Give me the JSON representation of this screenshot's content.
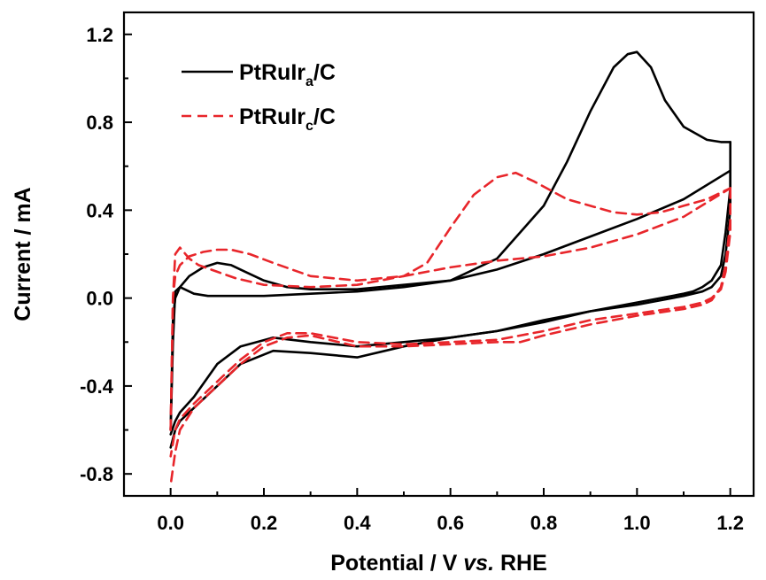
{
  "chart_data": {
    "type": "line",
    "xlabel_prefix": "Potential / V ",
    "xlabel_italic": "vs.",
    "xlabel_suffix": " RHE",
    "ylabel": "Current / mA",
    "xlim": [
      -0.1,
      1.25
    ],
    "ylim": [
      -0.9,
      1.3
    ],
    "xticks": [
      0.0,
      0.2,
      0.4,
      0.6,
      0.8,
      1.0,
      1.2
    ],
    "xtick_labels": [
      "0.0",
      "0.2",
      "0.4",
      "0.6",
      "0.8",
      "1.0",
      "1.2"
    ],
    "yticks": [
      -0.8,
      -0.4,
      0.0,
      0.4,
      0.8,
      1.2
    ],
    "ytick_labels": [
      "-0.8",
      "-0.4",
      "0.0",
      "0.4",
      "0.8",
      "1.2"
    ],
    "grid": false,
    "legend_position": "top-left",
    "series": [
      {
        "legend_main": "PtRuIr",
        "legend_sub": "a",
        "legend_tail": "/C",
        "color": "#000000",
        "dash": "solid",
        "segments": [
          {
            "x": [
              0.0,
              0.005,
              0.01,
              0.02,
              0.03,
              0.05,
              0.08,
              0.12,
              0.2,
              0.3,
              0.4,
              0.5,
              0.6,
              0.7,
              0.8,
              0.85,
              0.9,
              0.95,
              0.98,
              1.0,
              1.03,
              1.06,
              1.1,
              1.15,
              1.18,
              1.2
            ],
            "y": [
              -0.6,
              -0.2,
              0.03,
              0.05,
              0.04,
              0.02,
              0.01,
              0.01,
              0.01,
              0.02,
              0.03,
              0.05,
              0.08,
              0.18,
              0.42,
              0.62,
              0.85,
              1.05,
              1.11,
              1.12,
              1.05,
              0.9,
              0.78,
              0.72,
              0.71,
              0.71
            ]
          },
          {
            "x": [
              1.2,
              1.2,
              1.19,
              1.18,
              1.16,
              1.14,
              1.12,
              1.1,
              1.0,
              0.9,
              0.8,
              0.7,
              0.6,
              0.5,
              0.4,
              0.3,
              0.22,
              0.15,
              0.1,
              0.05,
              0.02,
              0.01,
              0.0
            ],
            "y": [
              0.71,
              0.5,
              0.3,
              0.15,
              0.08,
              0.05,
              0.03,
              0.02,
              -0.02,
              -0.06,
              -0.11,
              -0.15,
              -0.18,
              -0.22,
              -0.27,
              -0.25,
              -0.24,
              -0.3,
              -0.4,
              -0.5,
              -0.56,
              -0.6,
              -0.68
            ]
          },
          {
            "x": [
              0.0,
              0.005,
              0.01,
              0.02,
              0.04,
              0.07,
              0.1,
              0.13,
              0.16,
              0.2,
              0.25,
              0.3,
              0.4,
              0.5,
              0.6,
              0.7,
              0.8,
              0.9,
              1.0,
              1.1,
              1.2
            ],
            "y": [
              -0.6,
              -0.1,
              0.0,
              0.05,
              0.1,
              0.14,
              0.16,
              0.15,
              0.12,
              0.08,
              0.05,
              0.04,
              0.04,
              0.06,
              0.08,
              0.13,
              0.2,
              0.28,
              0.36,
              0.45,
              0.58
            ]
          },
          {
            "x": [
              1.2,
              1.2,
              1.19,
              1.18,
              1.16,
              1.14,
              1.12,
              1.1,
              1.0,
              0.9,
              0.8,
              0.7,
              0.6,
              0.5,
              0.4,
              0.3,
              0.22,
              0.15,
              0.1,
              0.05,
              0.02,
              0.01,
              0.0
            ],
            "y": [
              0.58,
              0.4,
              0.2,
              0.1,
              0.05,
              0.03,
              0.02,
              0.01,
              -0.03,
              -0.06,
              -0.1,
              -0.15,
              -0.18,
              -0.2,
              -0.22,
              -0.2,
              -0.18,
              -0.22,
              -0.3,
              -0.45,
              -0.52,
              -0.56,
              -0.62
            ]
          }
        ]
      },
      {
        "legend_main": "PtRuIr",
        "legend_sub": "c",
        "legend_tail": "/C",
        "color": "#e8262b",
        "dash": "dashed",
        "segments": [
          {
            "x": [
              0.0,
              0.005,
              0.01,
              0.02,
              0.04,
              0.06,
              0.1,
              0.14,
              0.2,
              0.3,
              0.4,
              0.5,
              0.55,
              0.6,
              0.65,
              0.7,
              0.74,
              0.78,
              0.85,
              0.95,
              1.0,
              1.05,
              1.1,
              1.15,
              1.2
            ],
            "y": [
              -0.6,
              0.0,
              0.2,
              0.23,
              0.18,
              0.15,
              0.12,
              0.09,
              0.06,
              0.05,
              0.06,
              0.1,
              0.16,
              0.32,
              0.47,
              0.55,
              0.57,
              0.53,
              0.45,
              0.39,
              0.38,
              0.39,
              0.42,
              0.45,
              0.5
            ]
          },
          {
            "x": [
              1.2,
              1.2,
              1.19,
              1.18,
              1.16,
              1.14,
              1.12,
              1.1,
              1.0,
              0.9,
              0.8,
              0.75,
              0.7,
              0.6,
              0.5,
              0.4,
              0.3,
              0.25,
              0.2,
              0.15,
              0.1,
              0.05,
              0.02,
              0.01,
              0.0
            ],
            "y": [
              0.5,
              0.35,
              0.15,
              0.05,
              -0.01,
              -0.03,
              -0.04,
              -0.05,
              -0.08,
              -0.12,
              -0.17,
              -0.2,
              -0.2,
              -0.21,
              -0.22,
              -0.22,
              -0.17,
              -0.18,
              -0.22,
              -0.3,
              -0.4,
              -0.5,
              -0.6,
              -0.7,
              -0.85
            ]
          },
          {
            "x": [
              0.0,
              0.005,
              0.01,
              0.02,
              0.04,
              0.07,
              0.1,
              0.13,
              0.17,
              0.22,
              0.3,
              0.4,
              0.5,
              0.6,
              0.7,
              0.8,
              0.9,
              1.0,
              1.1,
              1.2
            ],
            "y": [
              -0.6,
              0.0,
              0.1,
              0.15,
              0.19,
              0.21,
              0.22,
              0.22,
              0.2,
              0.16,
              0.1,
              0.08,
              0.1,
              0.14,
              0.17,
              0.19,
              0.23,
              0.29,
              0.37,
              0.5
            ]
          },
          {
            "x": [
              1.2,
              1.2,
              1.19,
              1.18,
              1.16,
              1.14,
              1.12,
              1.1,
              1.0,
              0.9,
              0.8,
              0.7,
              0.6,
              0.5,
              0.4,
              0.3,
              0.25,
              0.2,
              0.15,
              0.1,
              0.05,
              0.02,
              0.01,
              0.0
            ],
            "y": [
              0.5,
              0.3,
              0.12,
              0.04,
              0.0,
              -0.02,
              -0.03,
              -0.04,
              -0.07,
              -0.1,
              -0.15,
              -0.19,
              -0.2,
              -0.21,
              -0.2,
              -0.16,
              -0.16,
              -0.2,
              -0.28,
              -0.38,
              -0.48,
              -0.55,
              -0.6,
              -0.72
            ]
          }
        ]
      }
    ]
  }
}
